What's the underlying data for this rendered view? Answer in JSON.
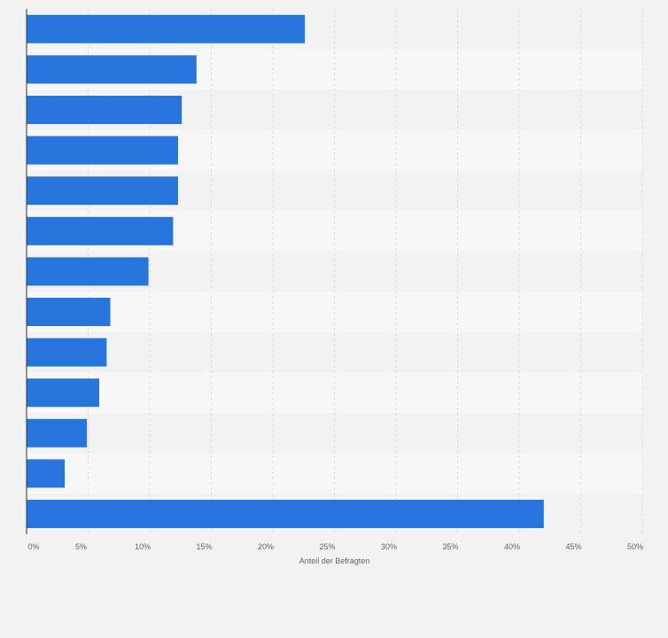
{
  "chart_data": {
    "type": "bar",
    "orientation": "horizontal",
    "title": "",
    "xlabel": "Anteil der Befragten",
    "ylabel": "",
    "categories": [
      "",
      "",
      "",
      "",
      "",
      "",
      "",
      "",
      "",
      "",
      "",
      "",
      ""
    ],
    "values": [
      22.6,
      13.8,
      12.6,
      12.3,
      12.3,
      11.9,
      9.9,
      6.8,
      6.5,
      5.9,
      4.9,
      3.1,
      42.0
    ],
    "xlim": [
      0,
      50
    ],
    "xticks": [
      0,
      5,
      10,
      15,
      20,
      25,
      30,
      35,
      40,
      45,
      50
    ],
    "xtick_labels": [
      "0%",
      "5%",
      "10%",
      "15%",
      "20%",
      "25%",
      "30%",
      "35%",
      "40%",
      "45%",
      "50%"
    ],
    "grid": true,
    "legend": "none",
    "colors": {
      "bar": "#2876dd",
      "row_even": "#f2f2f2",
      "row_odd": "#f7f7f7",
      "grid": "#d6d6d6",
      "axis": "#333333",
      "text": "#666666",
      "background": "#f2f2f2"
    }
  }
}
